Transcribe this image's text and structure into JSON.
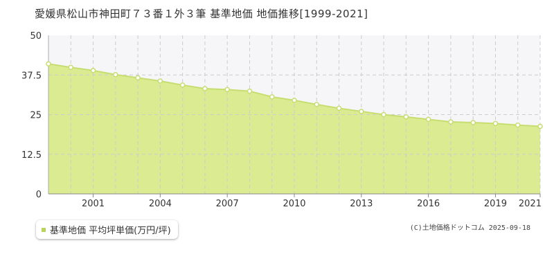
{
  "title": "愛媛県松山市神田町７３番１外３筆 基準地価 地価推移[1999-2021]",
  "copyright": "(C)土地価格ドットコム 2025-09-18",
  "colors": {
    "area_fill": "#dbeb92",
    "line": "#c6de70",
    "upper_shade": "#f6f5f8",
    "grid": "#cccccc",
    "marker_fill": "#ffffff",
    "legend_swatch": "#b9d45e"
  },
  "chart_data": {
    "type": "area",
    "x": [
      1999,
      2000,
      2001,
      2002,
      2003,
      2004,
      2005,
      2006,
      2007,
      2008,
      2009,
      2010,
      2011,
      2012,
      2013,
      2014,
      2015,
      2016,
      2017,
      2018,
      2019,
      2020,
      2021
    ],
    "series": [
      {
        "name": "基準地価 平均坪単価(万円/坪)",
        "values": [
          41.0,
          39.9,
          38.9,
          37.6,
          36.6,
          35.6,
          34.3,
          33.2,
          32.9,
          32.4,
          30.6,
          29.5,
          28.2,
          27.0,
          26.0,
          25.0,
          24.3,
          23.5,
          22.7,
          22.5,
          22.2,
          21.7,
          21.3
        ]
      }
    ],
    "x_ticks": [
      "2001",
      "2004",
      "2007",
      "2010",
      "2013",
      "2016",
      "2019",
      "2021"
    ],
    "y_ticks": [
      "0",
      "12.5",
      "25",
      "37.5",
      "50"
    ],
    "xlim": [
      1999,
      2021
    ],
    "ylim": [
      0,
      50
    ],
    "grid": true,
    "legend": "bottom-left"
  }
}
